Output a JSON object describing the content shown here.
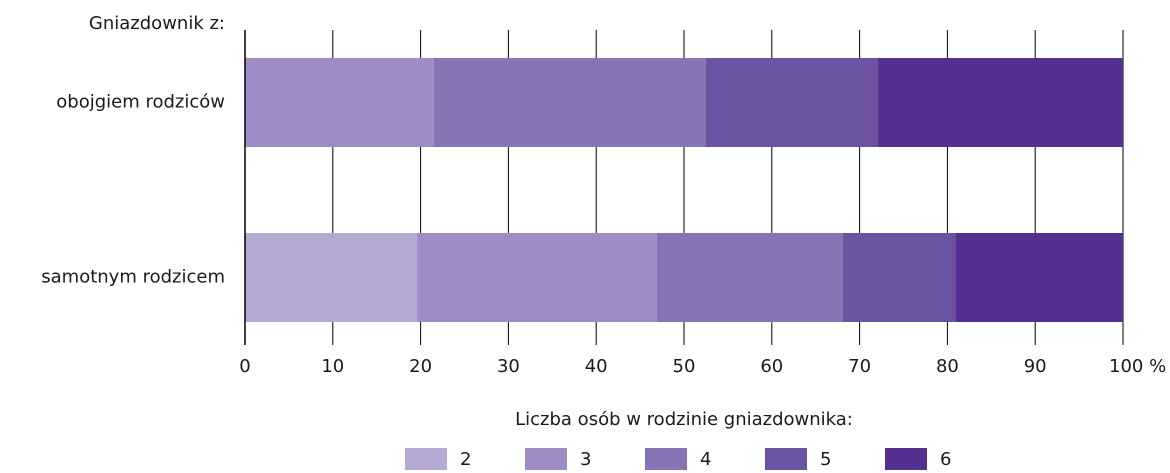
{
  "chart_data": {
    "type": "stacked_bar_horizontal",
    "y_axis_title": "Gniazdownik z:",
    "legend_title": "Liczba osób w rodzinie gniazdownika:",
    "categories": [
      "obojgiem rodziców",
      "samotnym rodzicem"
    ],
    "series": [
      {
        "name": "2",
        "color": "#b5a9d4",
        "values": [
          0,
          19.6
        ]
      },
      {
        "name": "3",
        "color": "#9f8cc4",
        "values": [
          21.5,
          27.3
        ]
      },
      {
        "name": "4",
        "color": "#8873b5",
        "values": [
          31,
          21.2
        ]
      },
      {
        "name": "5",
        "color": "#6c53a1",
        "values": [
          19.6,
          12.8
        ]
      },
      {
        "name": "6",
        "color": "#532f8f",
        "values": [
          27.9,
          19.1
        ]
      }
    ],
    "xlim": [
      0,
      100
    ],
    "xticks": [
      0,
      10,
      20,
      30,
      40,
      50,
      60,
      70,
      80,
      90,
      {
        "value": 100,
        "label": "100 %"
      }
    ],
    "grid": true,
    "legend": "bottom"
  }
}
